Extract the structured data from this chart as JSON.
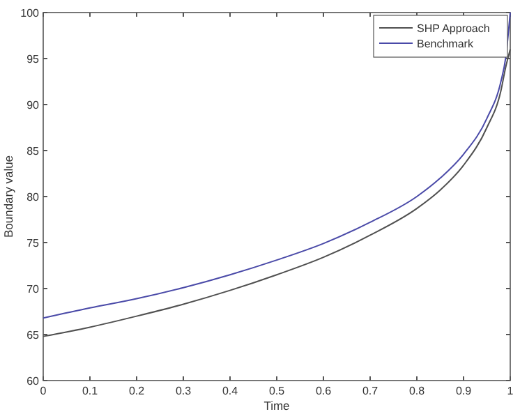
{
  "chart_data": {
    "type": "line",
    "xlabel": "Time",
    "ylabel": "Boundary value",
    "xlim": [
      0,
      1
    ],
    "xticks": [
      0,
      0.1,
      0.2,
      0.3,
      0.4,
      0.5,
      0.6,
      0.7,
      0.8,
      0.9,
      1
    ],
    "ylim": [
      60,
      100
    ],
    "yticks": [
      60,
      65,
      70,
      75,
      80,
      85,
      90,
      95,
      100
    ],
    "grid": false,
    "legend": "top right",
    "marker": "none",
    "line_style": "solid",
    "x": [
      0,
      0.1,
      0.2,
      0.3,
      0.4,
      0.5,
      0.6,
      0.7,
      0.8,
      0.85,
      0.9,
      0.95,
      0.98,
      0.99,
      1
    ],
    "series": [
      {
        "name": "SHP Approach",
        "color": "#505050",
        "values": [
          64.8,
          65.8,
          67.0,
          68.3,
          69.8,
          71.5,
          73.4,
          75.8,
          78.7,
          80.7,
          83.4,
          87.5,
          91.5,
          94,
          96
        ]
      },
      {
        "name": "Benchmark",
        "color": "#4a4aa8",
        "values": [
          66.8,
          67.9,
          68.9,
          70.1,
          71.5,
          73.1,
          74.9,
          77.2,
          80.0,
          82.0,
          84.6,
          88.5,
          92.5,
          95,
          100
        ]
      }
    ]
  }
}
